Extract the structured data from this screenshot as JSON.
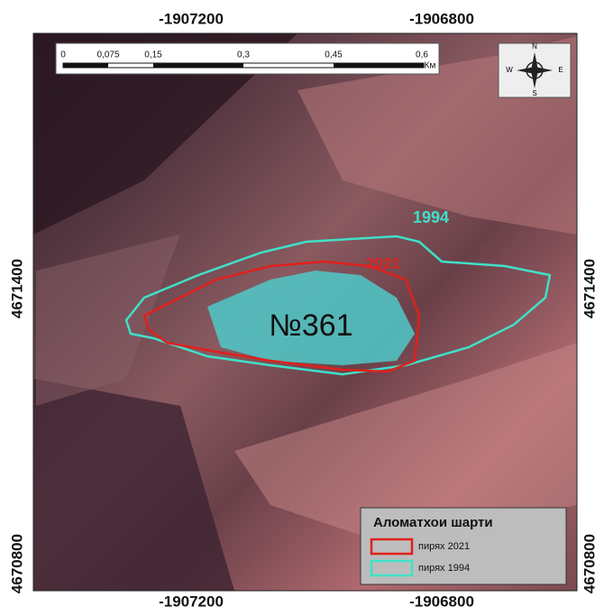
{
  "map": {
    "x_labels_top": [
      "-1907200",
      "-1906800"
    ],
    "x_labels_bottom": [
      "-1907200",
      "-1906800"
    ],
    "y_labels_left": [
      "4671400",
      "4670800"
    ],
    "y_labels_right": [
      "4671400",
      "4670800"
    ],
    "scale_bar": {
      "labels": [
        "0",
        "0,075",
        "0,15",
        "0,3",
        "0,45",
        "0,6"
      ],
      "unit": "Км"
    },
    "compass": {
      "n": "N",
      "s": "S",
      "w": "W",
      "e": "E"
    },
    "annotations": {
      "label_1994": "1994",
      "label_2021": "2021",
      "glacier_id": "№361"
    },
    "legend": {
      "title": "Аломатхои шарти",
      "items": [
        "пирях 2021",
        "пирях 1994"
      ]
    }
  }
}
